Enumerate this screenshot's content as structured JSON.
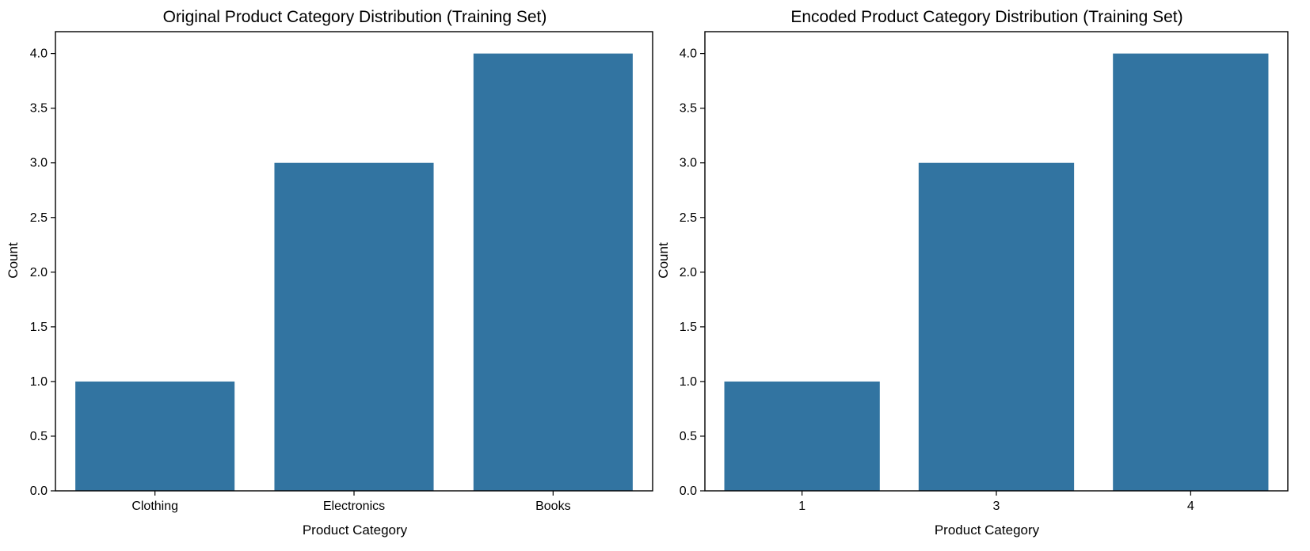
{
  "chart_data": [
    {
      "type": "bar",
      "title": "Original Product Category Distribution (Training Set)",
      "xlabel": "Product Category",
      "ylabel": "Count",
      "categories": [
        "Clothing",
        "Electronics",
        "Books"
      ],
      "values": [
        1,
        3,
        4
      ],
      "ylim": [
        0,
        4.2
      ],
      "yticks": [
        "0.0",
        "0.5",
        "1.0",
        "1.5",
        "2.0",
        "2.5",
        "3.0",
        "3.5",
        "4.0"
      ],
      "grid": false,
      "color": "#3274a1"
    },
    {
      "type": "bar",
      "title": "Encoded Product Category Distribution (Training Set)",
      "xlabel": "Product Category",
      "ylabel": "Count",
      "categories": [
        "1",
        "3",
        "4"
      ],
      "values": [
        1,
        3,
        4
      ],
      "ylim": [
        0,
        4.2
      ],
      "yticks": [
        "0.0",
        "0.5",
        "1.0",
        "1.5",
        "2.0",
        "2.5",
        "3.0",
        "3.5",
        "4.0"
      ],
      "grid": false,
      "color": "#3274a1"
    }
  ]
}
